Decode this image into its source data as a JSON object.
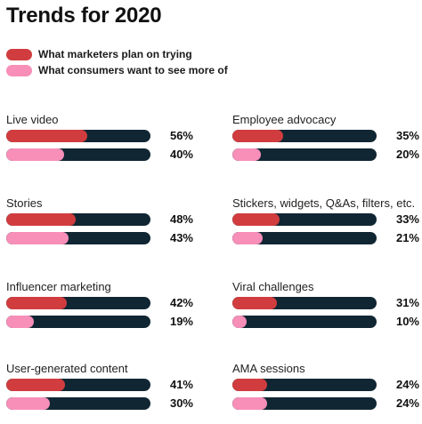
{
  "title": "Trends for 2020",
  "colors": {
    "marketers": "#d13d3f",
    "consumers": "#f78fb9",
    "track": "#112633"
  },
  "chart_data": {
    "type": "bar",
    "title": "Trends for 2020",
    "legend_position": "top-left",
    "series": [
      {
        "name": "What marketers plan on trying",
        "color": "#d13d3f"
      },
      {
        "name": "What consumers want to see more of",
        "color": "#f78fb9"
      }
    ],
    "categories": [
      {
        "label": "Live video",
        "values": [
          56,
          40
        ],
        "labels": [
          "56%",
          "40%"
        ]
      },
      {
        "label": "Employee advocacy",
        "values": [
          35,
          20
        ],
        "labels": [
          "35%",
          "20%"
        ]
      },
      {
        "label": "Stories",
        "values": [
          48,
          43
        ],
        "labels": [
          "48%",
          "43%"
        ]
      },
      {
        "label": "Stickers, widgets, Q&As, filters, etc.",
        "values": [
          33,
          21
        ],
        "labels": [
          "33%",
          "21%"
        ]
      },
      {
        "label": "Influencer marketing",
        "values": [
          42,
          19
        ],
        "labels": [
          "42%",
          "19%"
        ]
      },
      {
        "label": "Viral challenges",
        "values": [
          31,
          10
        ],
        "labels": [
          "31%",
          "10%"
        ]
      },
      {
        "label": "User-generated content",
        "values": [
          41,
          30
        ],
        "labels": [
          "41%",
          "30%"
        ]
      },
      {
        "label": "AMA sessions",
        "values": [
          24,
          24
        ],
        "labels": [
          "24%",
          "24%"
        ]
      }
    ],
    "xlim": [
      0,
      100
    ]
  }
}
